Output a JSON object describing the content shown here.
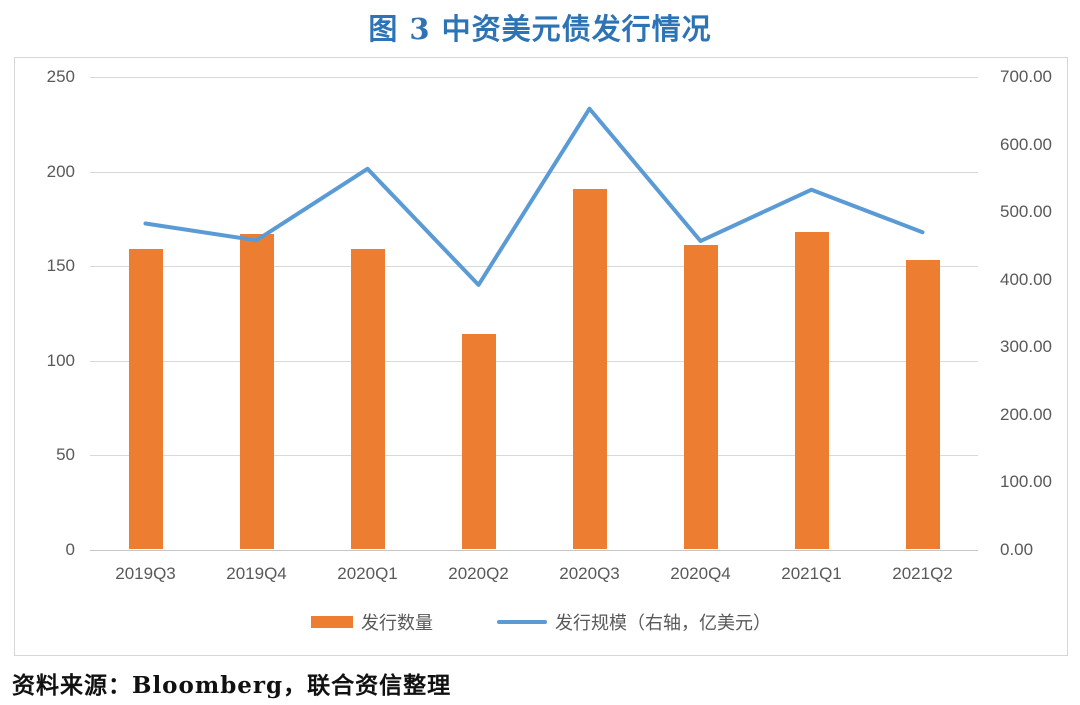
{
  "title": "图 3  中资美元债发行情况",
  "source_note": "资料来源：Bloomberg，联合资信整理",
  "colors": {
    "title_text": "#2e74b5",
    "bar": "#ed7d31",
    "line": "#5b9bd5",
    "axis_text": "#595959",
    "gridline": "#d9d9d9"
  },
  "chart_data": {
    "type": "combo_bar_line",
    "title": "图 3  中资美元债发行情况",
    "categories": [
      "2019Q3",
      "2019Q4",
      "2020Q1",
      "2020Q2",
      "2020Q3",
      "2020Q4",
      "2021Q1",
      "2021Q2"
    ],
    "series": [
      {
        "name": "发行数量",
        "type": "bar",
        "axis": "left",
        "color": "#ed7d31",
        "values": [
          159,
          167,
          159,
          114,
          191,
          161,
          168,
          153
        ]
      },
      {
        "name": "发行规模（右轴，亿美元）",
        "type": "line",
        "axis": "right",
        "color": "#5b9bd5",
        "values": [
          483,
          458,
          564,
          392,
          653,
          457,
          533,
          470
        ]
      }
    ],
    "left_axis": {
      "min": 0,
      "max": 250,
      "step": 50,
      "labels": [
        "0",
        "50",
        "100",
        "150",
        "200",
        "250"
      ]
    },
    "right_axis": {
      "min": 0,
      "max": 700,
      "step": 100,
      "labels": [
        "0.00",
        "100.00",
        "200.00",
        "300.00",
        "400.00",
        "500.00",
        "600.00",
        "700.00"
      ]
    },
    "grid": true,
    "legend_position": "bottom"
  }
}
